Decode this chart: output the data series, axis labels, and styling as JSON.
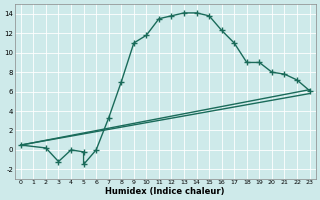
{
  "xlabel": "Humidex (Indice chaleur)",
  "background_color": "#ceeaea",
  "grid_color": "#ffffff",
  "line_color": "#1a6b5a",
  "xlim": [
    -0.5,
    23.5
  ],
  "ylim": [
    -3,
    15
  ],
  "xticks": [
    0,
    1,
    2,
    3,
    4,
    5,
    6,
    7,
    8,
    9,
    10,
    11,
    12,
    13,
    14,
    15,
    16,
    17,
    18,
    19,
    20,
    21,
    22,
    23
  ],
  "yticks": [
    -2,
    0,
    2,
    4,
    6,
    8,
    10,
    12,
    14
  ],
  "curve1_x": [
    0,
    2,
    3,
    4,
    5,
    5,
    6,
    7,
    8,
    9,
    10,
    11,
    12,
    13,
    14,
    15,
    16,
    17,
    18,
    19,
    20,
    21,
    22,
    23
  ],
  "curve1_y": [
    0.5,
    0.2,
    -1.2,
    0.0,
    -0.2,
    -1.5,
    0.0,
    3.3,
    7.0,
    11.0,
    11.8,
    13.5,
    13.8,
    14.1,
    14.1,
    13.8,
    12.3,
    11.0,
    9.0,
    9.0,
    8.0,
    7.8,
    7.2,
    6.1
  ],
  "line2_x": [
    0,
    23
  ],
  "line2_y": [
    0.5,
    6.2
  ],
  "line3_x": [
    0,
    23
  ],
  "line3_y": [
    0.5,
    5.8
  ],
  "marker": "+",
  "markersize": 4,
  "linewidth": 1.0,
  "xlabel_fontsize": 6,
  "tick_fontsize": 4.5
}
